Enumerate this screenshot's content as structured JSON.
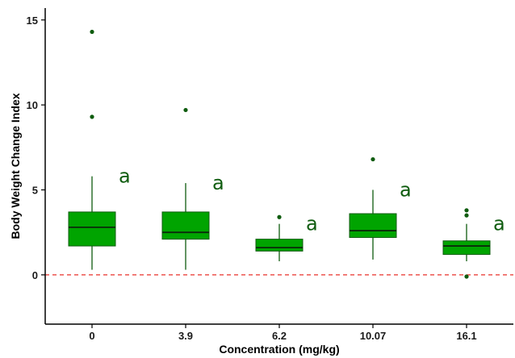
{
  "chart_data": {
    "type": "box",
    "title": "",
    "xlabel": "Concentration (mg/kg)",
    "ylabel": "Body Weight Change Index",
    "ylim": [
      -2.9,
      15.7
    ],
    "yticks": [
      0,
      5,
      10,
      15
    ],
    "ytick_labels": [
      "0",
      "5",
      "10",
      "15"
    ],
    "categories": [
      "0",
      "3.9",
      "6.2",
      "10.07",
      "16.1"
    ],
    "grid": false,
    "legend": "none",
    "box_color": "#00a400",
    "outline_color": "#0f5c0f",
    "letter_color": "#0f5c0f",
    "reference_line": {
      "y": 0,
      "color": "#e8302a",
      "style": "dashed"
    },
    "boxes": [
      {
        "category": "0",
        "whisker_low": 0.3,
        "q1": 1.7,
        "median": 2.8,
        "q3": 3.7,
        "whisker_high": 5.8,
        "outliers": [
          9.3,
          14.3
        ],
        "letter": "a"
      },
      {
        "category": "3.9",
        "whisker_low": 0.3,
        "q1": 2.1,
        "median": 2.5,
        "q3": 3.7,
        "whisker_high": 5.4,
        "outliers": [
          9.7
        ],
        "letter": "a"
      },
      {
        "category": "6.2",
        "whisker_low": 0.8,
        "q1": 1.4,
        "median": 1.6,
        "q3": 2.1,
        "whisker_high": 3.0,
        "outliers": [
          3.4
        ],
        "letter": "a"
      },
      {
        "category": "10.07",
        "whisker_low": 0.9,
        "q1": 2.2,
        "median": 2.6,
        "q3": 3.6,
        "whisker_high": 5.0,
        "outliers": [
          6.8
        ],
        "letter": "a"
      },
      {
        "category": "16.1",
        "whisker_low": 0.8,
        "q1": 1.2,
        "median": 1.7,
        "q3": 2.0,
        "whisker_high": 3.0,
        "outliers": [
          -0.1,
          3.5,
          3.8
        ],
        "letter": "a"
      }
    ]
  }
}
